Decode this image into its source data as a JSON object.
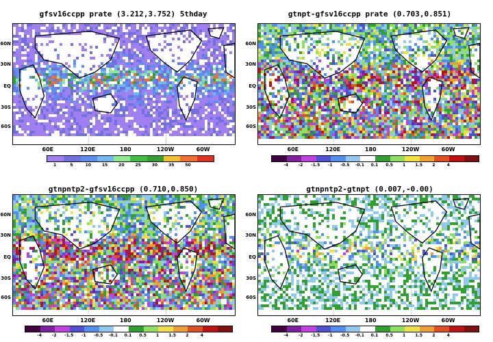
{
  "panels": [
    {
      "title": "gfsv16ccpp  prate  (3.212,3.752)  5thday",
      "lat_labels": [
        "60N",
        "30N",
        "EQ",
        "30S",
        "60S"
      ],
      "lon_labels": [
        "60E",
        "120E",
        "180",
        "120W",
        "60W"
      ],
      "colorbar_colors": [
        "#a080f0",
        "#7070e0",
        "#5d8ef0",
        "#70b8f0",
        "#90e890",
        "#40c040",
        "#30a030",
        "#f0c030",
        "#f07030",
        "#e03020"
      ],
      "colorbar_labels": [
        "1",
        "5",
        "10",
        "15",
        "20",
        "25",
        "30",
        "35",
        "50"
      ],
      "kind": "positive"
    },
    {
      "title": "gtnpt-gfsv16ccpp  prate  (0.703,0.851)",
      "lat_labels": [
        "60N",
        "30N",
        "EQ",
        "30S",
        "60S"
      ],
      "lon_labels": [
        "60E",
        "120E",
        "180",
        "120W",
        "60W"
      ],
      "colorbar_colors": [
        "#400040",
        "#8020a0",
        "#c040e0",
        "#5050d0",
        "#5090f0",
        "#90c8f0",
        "#ffffff",
        "#30a030",
        "#90e060",
        "#f0e040",
        "#f0a030",
        "#e05020",
        "#c01010",
        "#801010"
      ],
      "colorbar_labels": [
        "-4",
        "-2",
        "-1.5",
        "-1",
        "-0.5",
        "-0.1",
        "0.1",
        "0.5",
        "1",
        "1.5",
        "2",
        "4"
      ],
      "kind": "diff-strong"
    },
    {
      "title": "gtnpntp2-gfsv16ccpp  (0.710,0.850)",
      "lat_labels": [
        "60N",
        "30N",
        "EQ",
        "30S",
        "60S"
      ],
      "lon_labels": [
        "60E",
        "120E",
        "180",
        "120W",
        "60W"
      ],
      "colorbar_colors": [
        "#400040",
        "#8020a0",
        "#c040e0",
        "#5050d0",
        "#5090f0",
        "#90c8f0",
        "#ffffff",
        "#30a030",
        "#90e060",
        "#f0e040",
        "#f0a030",
        "#e05020",
        "#c01010",
        "#801010"
      ],
      "colorbar_labels": [
        "-4",
        "-2",
        "-1.5",
        "-1",
        "-0.5",
        "-0.1",
        "0.1",
        "0.5",
        "1",
        "1.5",
        "2",
        "4"
      ],
      "kind": "diff-strong"
    },
    {
      "title": "gtnpntp2-gtnpt  (0.007,-0.00)",
      "lat_labels": [
        "60N",
        "30N",
        "EQ",
        "30S",
        "60S"
      ],
      "lon_labels": [
        "60E",
        "120E",
        "180",
        "120W",
        "60W"
      ],
      "colorbar_colors": [
        "#400040",
        "#8020a0",
        "#c040e0",
        "#5050d0",
        "#5090f0",
        "#90c8f0",
        "#ffffff",
        "#30a030",
        "#90e060",
        "#f0e040",
        "#f0a030",
        "#e05020",
        "#c01010",
        "#801010"
      ],
      "colorbar_labels": [
        "-4",
        "-2",
        "-1.5",
        "-1",
        "-0.5",
        "-0.1",
        "0.1",
        "0.5",
        "1",
        "1.5",
        "2",
        "4"
      ],
      "kind": "diff-weak"
    }
  ]
}
